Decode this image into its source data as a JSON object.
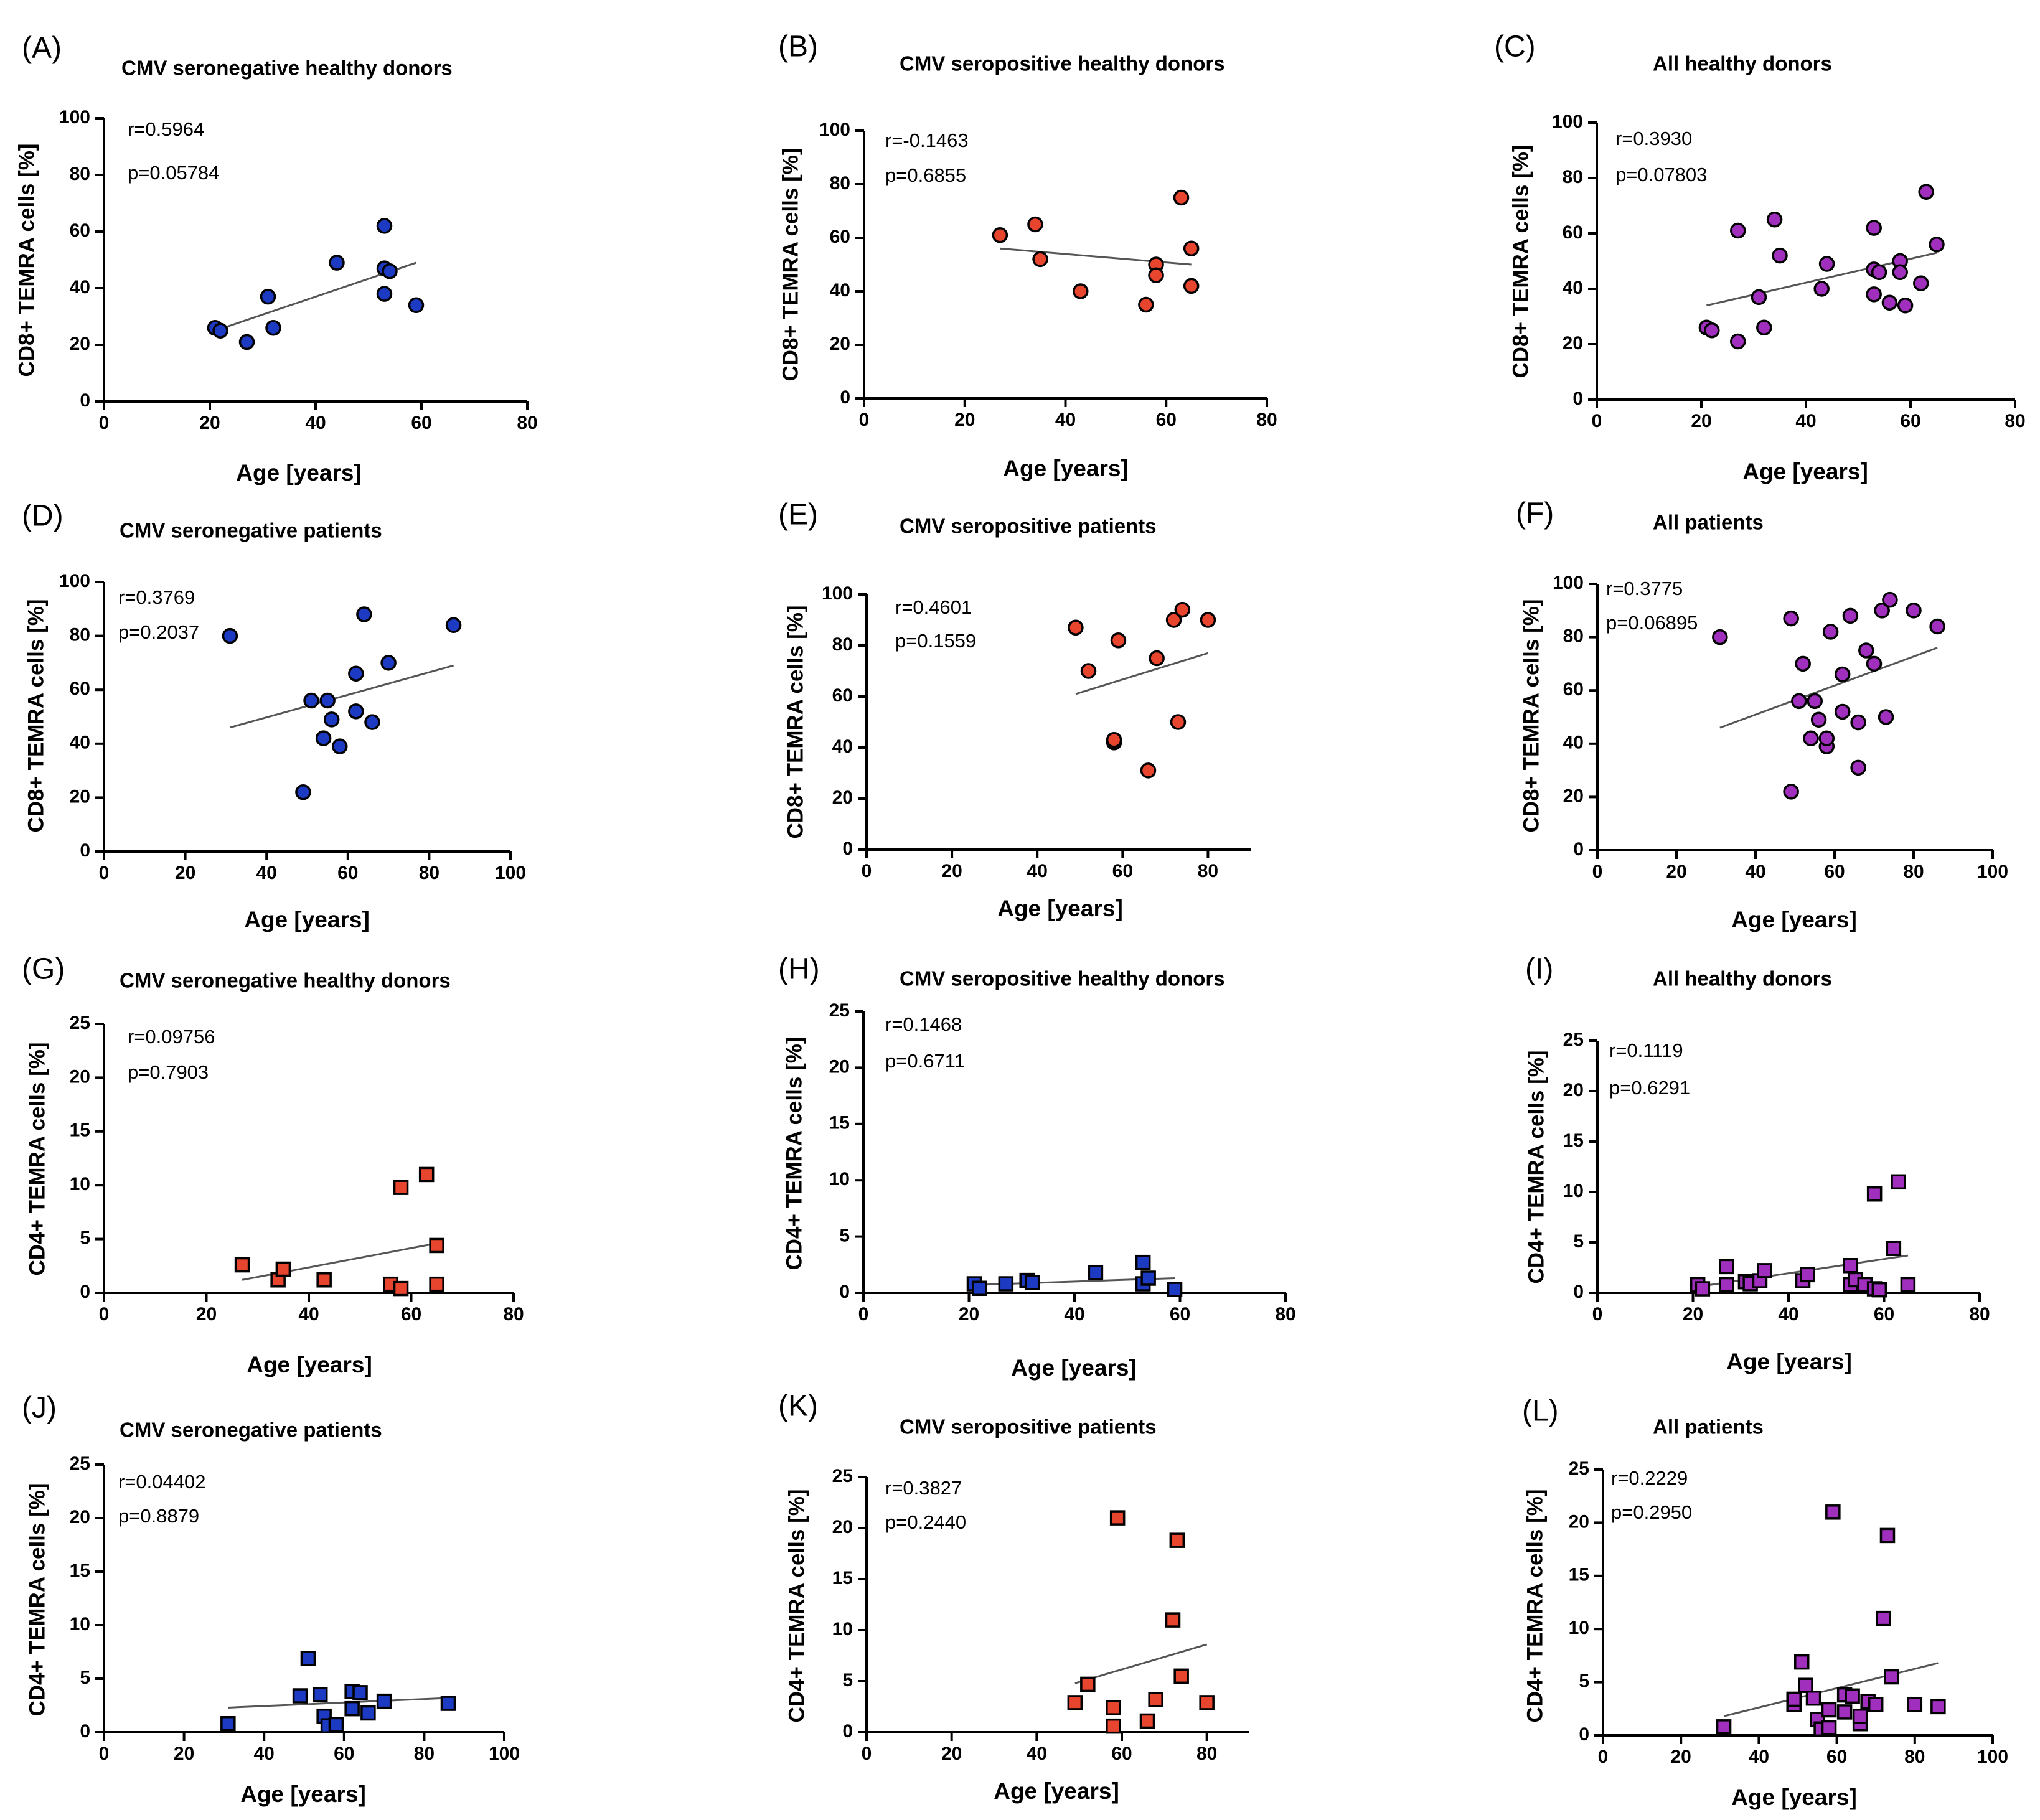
{
  "colors": {
    "blue": "#1c3bc2",
    "red": "#e8452f",
    "purple": "#a12fbe",
    "trend": "#555555"
  },
  "chart_data": [
    {
      "panel": "(A)",
      "type": "scatter",
      "title": "CMV seronegative healthy donors",
      "xlabel": "Age [years]",
      "ylabel": "CD8+ TEMRA cells [%]",
      "xlim": [
        0,
        80
      ],
      "xticks": [
        0,
        20,
        40,
        60,
        80
      ],
      "ylim": [
        0,
        100
      ],
      "yticks": [
        0,
        20,
        40,
        60,
        80,
        100
      ],
      "r": "r=0.5964",
      "p": "p=0.05784",
      "marker": "circle",
      "color": "blue",
      "points": [
        [
          21,
          26
        ],
        [
          22,
          25
        ],
        [
          27,
          21
        ],
        [
          31,
          37
        ],
        [
          32,
          26
        ],
        [
          44,
          49
        ],
        [
          53,
          62
        ],
        [
          53,
          47
        ],
        [
          53,
          38
        ],
        [
          54,
          46
        ],
        [
          59,
          34
        ]
      ],
      "trend": [
        [
          21,
          25
        ],
        [
          59,
          49
        ]
      ]
    },
    {
      "panel": "(B)",
      "type": "scatter",
      "title": "CMV seropositive healthy donors",
      "xlabel": "Age [years]",
      "ylabel": "CD8+ TEMRA cells [%]",
      "xlim": [
        0,
        80
      ],
      "xticks": [
        0,
        20,
        40,
        60,
        80
      ],
      "ylim": [
        0,
        100
      ],
      "yticks": [
        0,
        20,
        40,
        60,
        80,
        100
      ],
      "r": "r=-0.1463",
      "p": "p=0.6855",
      "marker": "circle",
      "color": "red",
      "points": [
        [
          27,
          61
        ],
        [
          34,
          65
        ],
        [
          35,
          52
        ],
        [
          43,
          40
        ],
        [
          56,
          35
        ],
        [
          58,
          50
        ],
        [
          58,
          46
        ],
        [
          63,
          75
        ],
        [
          65,
          56
        ],
        [
          65,
          42
        ]
      ],
      "trend": [
        [
          27,
          56
        ],
        [
          65,
          50
        ]
      ]
    },
    {
      "panel": "(C)",
      "type": "scatter",
      "title": "All healthy donors",
      "xlabel": "Age [years]",
      "ylabel": "CD8+ TEMRA cells [%]",
      "xlim": [
        0,
        80
      ],
      "xticks": [
        0,
        20,
        40,
        60,
        80
      ],
      "ylim": [
        0,
        100
      ],
      "yticks": [
        0,
        20,
        40,
        60,
        80,
        100
      ],
      "r": "r=0.3930",
      "p": "p=0.07803",
      "marker": "circle",
      "color": "purple",
      "points": [
        [
          21,
          26
        ],
        [
          22,
          25
        ],
        [
          27,
          21
        ],
        [
          27,
          61
        ],
        [
          31,
          37
        ],
        [
          32,
          26
        ],
        [
          34,
          65
        ],
        [
          35,
          52
        ],
        [
          43,
          40
        ],
        [
          44,
          49
        ],
        [
          53,
          62
        ],
        [
          53,
          47
        ],
        [
          53,
          38
        ],
        [
          54,
          46
        ],
        [
          56,
          35
        ],
        [
          58,
          50
        ],
        [
          58,
          46
        ],
        [
          59,
          34
        ],
        [
          62,
          42
        ],
        [
          63,
          75
        ],
        [
          65,
          56
        ]
      ],
      "trend": [
        [
          21,
          34
        ],
        [
          65,
          53
        ]
      ]
    },
    {
      "panel": "(D)",
      "type": "scatter",
      "title": "CMV seronegative patients",
      "xlabel": "Age [years]",
      "ylabel": "CD8+ TEMRA cells [%]",
      "xlim": [
        0,
        100
      ],
      "xticks": [
        0,
        20,
        40,
        60,
        80,
        100
      ],
      "ylim": [
        0,
        100
      ],
      "yticks": [
        0,
        20,
        40,
        60,
        80,
        100
      ],
      "r": "r=0.3769",
      "p": "p=0.2037",
      "marker": "circle",
      "color": "blue",
      "points": [
        [
          31,
          80
        ],
        [
          49,
          22
        ],
        [
          51,
          56
        ],
        [
          54,
          42
        ],
        [
          55,
          56
        ],
        [
          56,
          49
        ],
        [
          58,
          39
        ],
        [
          62,
          52
        ],
        [
          62,
          66
        ],
        [
          64,
          88
        ],
        [
          66,
          48
        ],
        [
          70,
          70
        ],
        [
          86,
          84
        ]
      ],
      "trend": [
        [
          31,
          46
        ],
        [
          86,
          69
        ]
      ]
    },
    {
      "panel": "(E)",
      "type": "scatter",
      "title": "CMV seropositive patients",
      "xlabel": "Age [years]",
      "ylabel": "CD8+ TEMRA cells [%]",
      "xlim": [
        0,
        90
      ],
      "xticks": [
        0,
        20,
        40,
        60,
        80
      ],
      "ylim": [
        0,
        100
      ],
      "yticks": [
        0,
        20,
        40,
        60,
        80,
        100
      ],
      "r": "r=0.4601",
      "p": "p=0.1559",
      "marker": "circle",
      "color": "red",
      "points": [
        [
          49,
          87
        ],
        [
          52,
          70
        ],
        [
          58,
          42
        ],
        [
          58,
          43
        ],
        [
          59,
          82
        ],
        [
          66,
          31
        ],
        [
          68,
          75
        ],
        [
          72,
          90
        ],
        [
          73,
          50
        ],
        [
          74,
          94
        ],
        [
          80,
          90
        ]
      ],
      "trend": [
        [
          49,
          61
        ],
        [
          80,
          77
        ]
      ]
    },
    {
      "panel": "(F)",
      "type": "scatter",
      "title": "All patients",
      "xlabel": "Age [years]",
      "ylabel": "CD8+ TEMRA cells [%]",
      "xlim": [
        0,
        100
      ],
      "xticks": [
        0,
        20,
        40,
        60,
        80,
        100
      ],
      "ylim": [
        0,
        100
      ],
      "yticks": [
        0,
        20,
        40,
        60,
        80,
        100
      ],
      "r": "r=0.3775",
      "p": "p=0.06895",
      "marker": "circle",
      "color": "purple",
      "points": [
        [
          31,
          80
        ],
        [
          49,
          22
        ],
        [
          49,
          87
        ],
        [
          51,
          56
        ],
        [
          52,
          70
        ],
        [
          54,
          42
        ],
        [
          55,
          56
        ],
        [
          56,
          49
        ],
        [
          58,
          39
        ],
        [
          58,
          42
        ],
        [
          59,
          82
        ],
        [
          62,
          52
        ],
        [
          62,
          66
        ],
        [
          64,
          88
        ],
        [
          66,
          31
        ],
        [
          66,
          48
        ],
        [
          68,
          75
        ],
        [
          70,
          70
        ],
        [
          72,
          90
        ],
        [
          73,
          50
        ],
        [
          74,
          94
        ],
        [
          80,
          90
        ],
        [
          86,
          84
        ]
      ],
      "trend": [
        [
          31,
          46
        ],
        [
          86,
          76
        ]
      ]
    },
    {
      "panel": "(G)",
      "type": "scatter",
      "title": "CMV seronegative healthy donors",
      "xlabel": "Age [years]",
      "ylabel": "CD4+ TEMRA cells [%]",
      "xlim": [
        0,
        80
      ],
      "xticks": [
        0,
        20,
        40,
        60,
        80
      ],
      "ylim": [
        0,
        25
      ],
      "yticks": [
        0,
        5,
        10,
        15,
        20,
        25
      ],
      "r": "r=0.09756",
      "p": "p=0.7903",
      "marker": "square",
      "color": "red",
      "points": [
        [
          27,
          2.6
        ],
        [
          34,
          1.2
        ],
        [
          35,
          2.2
        ],
        [
          43,
          1.2
        ],
        [
          56,
          0.8
        ],
        [
          58,
          0.4
        ],
        [
          58,
          9.8
        ],
        [
          63,
          11
        ],
        [
          65,
          4.4
        ],
        [
          65,
          0.8
        ]
      ],
      "trend": [
        [
          27,
          1.2
        ],
        [
          65,
          4.6
        ]
      ]
    },
    {
      "panel": "(H)",
      "type": "scatter",
      "title": "CMV seropositive healthy donors",
      "xlabel": "Age [years]",
      "ylabel": "CD4+ TEMRA cells [%]",
      "xlim": [
        0,
        80
      ],
      "xticks": [
        0,
        20,
        40,
        60,
        80
      ],
      "ylim": [
        0,
        25
      ],
      "yticks": [
        0,
        5,
        10,
        15,
        20,
        25
      ],
      "r": "r=0.1468",
      "p": "p=0.6711",
      "marker": "square",
      "color": "blue",
      "points": [
        [
          21,
          0.8
        ],
        [
          22,
          0.4
        ],
        [
          27,
          0.8
        ],
        [
          31,
          1.1
        ],
        [
          32,
          0.9
        ],
        [
          44,
          1.8
        ],
        [
          53,
          2.7
        ],
        [
          53,
          0.8
        ],
        [
          54,
          1.3
        ],
        [
          59,
          0.3
        ]
      ],
      "trend": [
        [
          21,
          0.7
        ],
        [
          59,
          1.3
        ]
      ]
    },
    {
      "panel": "(I)",
      "type": "scatter",
      "title": "All healthy donors",
      "xlabel": "Age [years]",
      "ylabel": "CD4+ TEMRA cells [%]",
      "xlim": [
        0,
        80
      ],
      "xticks": [
        0,
        20,
        40,
        60,
        80
      ],
      "ylim": [
        0,
        25
      ],
      "yticks": [
        0,
        5,
        10,
        15,
        20,
        25
      ],
      "r": "r=0.1119",
      "p": "p=0.6291",
      "marker": "square",
      "color": "purple",
      "points": [
        [
          21,
          0.8
        ],
        [
          22,
          0.4
        ],
        [
          27,
          0.8
        ],
        [
          27,
          2.6
        ],
        [
          31,
          1.1
        ],
        [
          32,
          0.9
        ],
        [
          34,
          1.2
        ],
        [
          35,
          2.2
        ],
        [
          43,
          1.2
        ],
        [
          44,
          1.8
        ],
        [
          53,
          2.7
        ],
        [
          53,
          0.8
        ],
        [
          54,
          1.3
        ],
        [
          56,
          0.8
        ],
        [
          58,
          0.4
        ],
        [
          58,
          9.8
        ],
        [
          59,
          0.3
        ],
        [
          62,
          4.4
        ],
        [
          63,
          11
        ],
        [
          65,
          0.8
        ]
      ],
      "trend": [
        [
          21,
          0.6
        ],
        [
          65,
          3.7
        ]
      ]
    },
    {
      "panel": "(J)",
      "type": "scatter",
      "title": "CMV seronegative patients",
      "xlabel": "Age [years]",
      "ylabel": "CD4+ TEMRA cells [%]",
      "xlim": [
        0,
        100
      ],
      "xticks": [
        0,
        20,
        40,
        60,
        80,
        100
      ],
      "ylim": [
        0,
        25
      ],
      "yticks": [
        0,
        5,
        10,
        15,
        20,
        25
      ],
      "r": "r=0.04402",
      "p": "p=0.8879",
      "marker": "square",
      "color": "blue",
      "points": [
        [
          31,
          0.8
        ],
        [
          49,
          3.4
        ],
        [
          51,
          6.9
        ],
        [
          54,
          3.5
        ],
        [
          55,
          1.5
        ],
        [
          56,
          0.6
        ],
        [
          58,
          0.7
        ],
        [
          62,
          2.2
        ],
        [
          62,
          3.8
        ],
        [
          64,
          3.7
        ],
        [
          66,
          1.8
        ],
        [
          70,
          2.9
        ],
        [
          86,
          2.7
        ]
      ],
      "trend": [
        [
          31,
          2.3
        ],
        [
          86,
          3.2
        ]
      ]
    },
    {
      "panel": "(K)",
      "type": "scatter",
      "title": "CMV seropositive patients",
      "xlabel": "Age [years]",
      "ylabel": "CD4+ TEMRA cells [%]",
      "xlim": [
        0,
        90
      ],
      "xticks": [
        0,
        20,
        40,
        60,
        80
      ],
      "ylim": [
        0,
        25
      ],
      "yticks": [
        0,
        5,
        10,
        15,
        20,
        25
      ],
      "r": "r=0.3827",
      "p": "p=0.2440",
      "marker": "square",
      "color": "red",
      "points": [
        [
          49,
          2.9
        ],
        [
          52,
          4.7
        ],
        [
          58,
          2.4
        ],
        [
          58,
          0.6
        ],
        [
          59,
          21
        ],
        [
          66,
          1.1
        ],
        [
          68,
          3.2
        ],
        [
          72,
          11
        ],
        [
          73,
          18.8
        ],
        [
          74,
          5.5
        ],
        [
          80,
          2.9
        ]
      ],
      "trend": [
        [
          49,
          4.8
        ],
        [
          80,
          8.6
        ]
      ]
    },
    {
      "panel": "(L)",
      "type": "scatter",
      "title": "All patients",
      "xlabel": "Age [years]",
      "ylabel": "CD4+ TEMRA cells [%]",
      "xlim": [
        0,
        100
      ],
      "xticks": [
        0,
        20,
        40,
        60,
        80,
        100
      ],
      "ylim": [
        0,
        25
      ],
      "yticks": [
        0,
        5,
        10,
        15,
        20,
        25
      ],
      "r": "r=0.2229",
      "p": "p=0.2950",
      "marker": "square",
      "color": "purple",
      "points": [
        [
          31,
          0.8
        ],
        [
          49,
          2.9
        ],
        [
          49,
          3.4
        ],
        [
          51,
          6.9
        ],
        [
          52,
          4.7
        ],
        [
          54,
          3.5
        ],
        [
          55,
          1.5
        ],
        [
          56,
          0.6
        ],
        [
          58,
          0.7
        ],
        [
          58,
          2.4
        ],
        [
          59,
          21
        ],
        [
          62,
          2.2
        ],
        [
          62,
          3.8
        ],
        [
          64,
          3.7
        ],
        [
          66,
          1.1
        ],
        [
          66,
          1.8
        ],
        [
          68,
          3.2
        ],
        [
          70,
          2.9
        ],
        [
          72,
          11
        ],
        [
          73,
          18.8
        ],
        [
          74,
          5.5
        ],
        [
          80,
          2.9
        ],
        [
          86,
          2.7
        ]
      ],
      "trend": [
        [
          31,
          1.8
        ],
        [
          86,
          6.8
        ]
      ]
    }
  ]
}
